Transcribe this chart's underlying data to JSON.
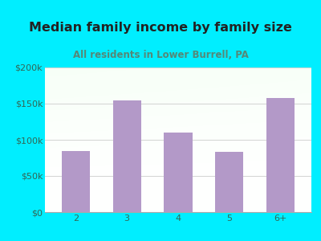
{
  "title": "Median family income by family size",
  "subtitle": "All residents in Lower Burrell, PA",
  "categories": [
    "2",
    "3",
    "4",
    "5",
    "6+"
  ],
  "values": [
    85000,
    155000,
    110000,
    83000,
    158000
  ],
  "bar_color": "#b399c8",
  "ylim": [
    0,
    200000
  ],
  "yticks": [
    0,
    50000,
    100000,
    150000,
    200000
  ],
  "ytick_labels": [
    "$0",
    "$50k",
    "$100k",
    "$150k",
    "$200k"
  ],
  "bg_outer": "#00eeff",
  "title_color": "#222222",
  "subtitle_color": "#558877",
  "axis_tick_color": "#336655",
  "title_fontsize": 11.5,
  "subtitle_fontsize": 8.5,
  "tick_fontsize": 8
}
